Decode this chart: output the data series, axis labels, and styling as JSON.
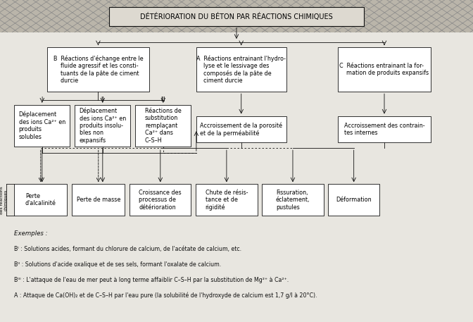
{
  "title": "DÉTÉRIORATION DU BÉTON PAR RÉACTIONS CHIMIQUES",
  "fig_w": 6.72,
  "fig_h": 4.57,
  "dpi": 100,
  "bg": "#e8e6e0",
  "box_fc": "#ffffff",
  "box_ec": "#111111",
  "lw": 0.6,
  "banner_fc": "#bab5aa",
  "title_fc": "#d8d4cc",
  "font": "DejaVu Sans",
  "boxes": {
    "B": [
      0.1,
      0.715,
      0.215,
      0.138
    ],
    "A": [
      0.415,
      0.715,
      0.19,
      0.138
    ],
    "C": [
      0.715,
      0.715,
      0.195,
      0.138
    ],
    "I": [
      0.03,
      0.545,
      0.118,
      0.13
    ],
    "II": [
      0.158,
      0.545,
      0.118,
      0.13
    ],
    "III": [
      0.286,
      0.545,
      0.118,
      0.13
    ],
    "AP": [
      0.415,
      0.558,
      0.19,
      0.082
    ],
    "AC": [
      0.715,
      0.558,
      0.195,
      0.082
    ],
    "PA": [
      0.03,
      0.33,
      0.112,
      0.098
    ],
    "PM": [
      0.152,
      0.33,
      0.112,
      0.098
    ],
    "CD": [
      0.274,
      0.33,
      0.13,
      0.098
    ],
    "CR": [
      0.414,
      0.33,
      0.13,
      0.098
    ],
    "FE": [
      0.554,
      0.33,
      0.13,
      0.098
    ],
    "DE": [
      0.694,
      0.33,
      0.108,
      0.098
    ]
  },
  "box_labels": {
    "B": "B  Réactions d'échange entre le\n    fluide agressif et les consti-\n    tuants de la pâte de ciment\n    durcie",
    "A": "A  Réactions entrainant l'hydro-\n    lyse et le lessivage des\n    composés de la pâte de\n    ciment durcie",
    "C": "C  Réactions entrainant la for-\n    mation de produits expansifs",
    "I": "Déplacement\ndes ions Ca²⁺ en\nproduits\nsolubles",
    "II": "Déplacement\ndes ions Ca²⁺ en\nproduits insolu-\nbles non\nexpansifs",
    "III": "Réactions de\nsubstitution\nremplaçant\nCa²⁺ dans\nC–S–H",
    "AP": "Accroissement de la porosité\net de la perméabilité",
    "AC": "Accroissement des contrain-\ntes internes",
    "PA": "Perte\nd'alcalinité",
    "PM": "Perte de masse",
    "CD": "Croissance des\nprocessus de\ndétérioration",
    "CR": "Chute de résis-\ntance et de\nrigidité",
    "FE": "Fissuration,\néclatement,\npustules",
    "DE": "Déformation"
  },
  "box_fs": {
    "B": 5.8,
    "A": 5.8,
    "C": 5.8,
    "I": 5.8,
    "II": 5.8,
    "III": 5.8,
    "AP": 5.8,
    "AC": 5.8,
    "PA": 5.8,
    "PM": 5.8,
    "CD": 5.8,
    "CR": 5.8,
    "FE": 5.8,
    "DE": 5.8
  },
  "examples": [
    [
      "Exemples :",
      true
    ],
    [
      "Bᴵ : Solutions acides, formant du chlorure de calcium, de l'acétate de calcium, etc.",
      false
    ],
    [
      "Bᴵᴵ : Solutions d'acide oxalique et de ses sels, formant l'oxalate de calcium.",
      false
    ],
    [
      "Bᴵᴵᴵ : L'attaque de l'eau de mer peut à long terme affaiblir C–S–H par la substitution de Mg²⁺ à Ca²⁺.",
      false
    ],
    [
      "A : Attaque de Ca(OH)₂ et de C–S–H par l'eau pure (la solubilité de l'hydroxyde de calcium est 1,7 g/l à 20°C).",
      false
    ]
  ]
}
